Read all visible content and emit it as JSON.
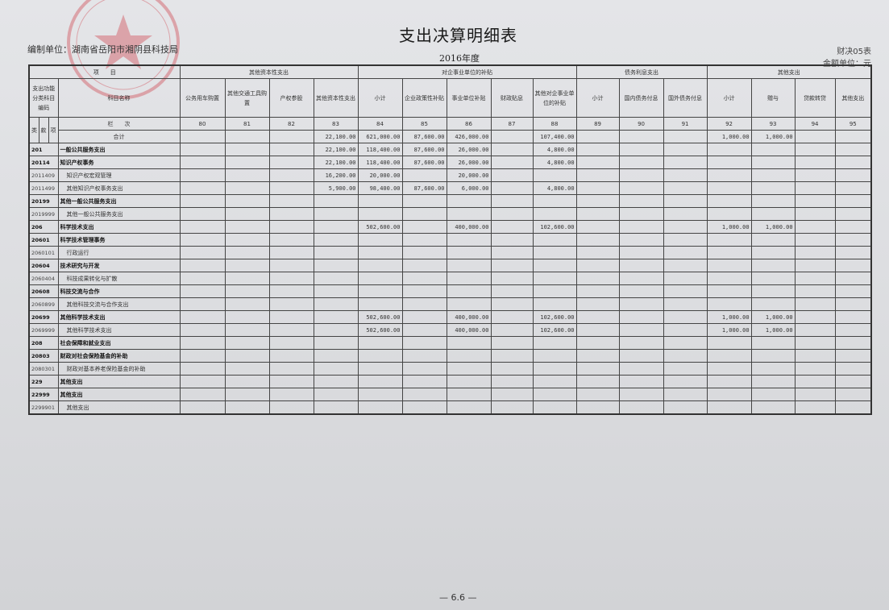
{
  "header": {
    "title": "支出决算明细表",
    "unit": "编制单位：湖南省岳阳市湘阴县科技局",
    "year": "2016年度",
    "form_no": "财决05表",
    "money_unit": "金额单位：元"
  },
  "stamp_color": "#d2555f",
  "columns": {
    "project": "项　　目",
    "func_code": "支出功能分类科目编码",
    "item_name": "科目名称",
    "lei": "类",
    "kuan": "款",
    "xiang": "项",
    "lanci": "栏　　次",
    "groups": [
      "其他资本性支出",
      "对企事业单位的补贴",
      "债务利息支出",
      "其他支出"
    ],
    "subs": [
      "公务用车购置",
      "其他交通工具购置",
      "产权参股",
      "其他资本性支出",
      "小计",
      "企业政策性补贴",
      "事业单位补贴",
      "财政贴息",
      "其他对企事业单位的补贴",
      "小计",
      "国内债务付息",
      "国外债务付息",
      "小计",
      "赠与",
      "贷款转贷",
      "其他支出"
    ],
    "numbers": [
      "80",
      "81",
      "82",
      "83",
      "84",
      "85",
      "86",
      "87",
      "88",
      "89",
      "90",
      "91",
      "92",
      "93",
      "94",
      "95"
    ]
  },
  "total": {
    "label": "合计",
    "values": [
      "",
      "",
      "",
      "22,100.00",
      "621,000.00",
      "87,600.00",
      "426,000.00",
      "",
      "107,400.00",
      "",
      "",
      "",
      "1,000.00",
      "1,000.00",
      "",
      ""
    ]
  },
  "rows": [
    {
      "code": "201",
      "name": "一般公共服务支出",
      "bold": true,
      "values": [
        "",
        "",
        "",
        "22,100.00",
        "118,400.00",
        "87,600.00",
        "26,000.00",
        "",
        "4,800.00",
        "",
        "",
        "",
        "",
        "",
        "",
        ""
      ]
    },
    {
      "code": "20114",
      "name": "知识产权事务",
      "bold": true,
      "values": [
        "",
        "",
        "",
        "22,100.00",
        "118,400.00",
        "87,600.00",
        "26,000.00",
        "",
        "4,800.00",
        "",
        "",
        "",
        "",
        "",
        "",
        ""
      ]
    },
    {
      "code": "2011409",
      "name": "知识产权宏观管理",
      "bold": false,
      "values": [
        "",
        "",
        "",
        "16,200.00",
        "20,000.00",
        "",
        "20,000.00",
        "",
        "",
        "",
        "",
        "",
        "",
        "",
        "",
        ""
      ]
    },
    {
      "code": "2011499",
      "name": "其他知识产权事务支出",
      "bold": false,
      "values": [
        "",
        "",
        "",
        "5,900.00",
        "98,400.00",
        "87,600.00",
        "6,000.00",
        "",
        "4,800.00",
        "",
        "",
        "",
        "",
        "",
        "",
        ""
      ]
    },
    {
      "code": "20199",
      "name": "其他一般公共服务支出",
      "bold": true,
      "values": [
        "",
        "",
        "",
        "",
        "",
        "",
        "",
        "",
        "",
        "",
        "",
        "",
        "",
        "",
        "",
        ""
      ]
    },
    {
      "code": "2019999",
      "name": "其他一般公共服务支出",
      "bold": false,
      "values": [
        "",
        "",
        "",
        "",
        "",
        "",
        "",
        "",
        "",
        "",
        "",
        "",
        "",
        "",
        "",
        ""
      ]
    },
    {
      "code": "206",
      "name": "科学技术支出",
      "bold": true,
      "values": [
        "",
        "",
        "",
        "",
        "502,600.00",
        "",
        "400,000.00",
        "",
        "102,600.00",
        "",
        "",
        "",
        "1,000.00",
        "1,000.00",
        "",
        ""
      ]
    },
    {
      "code": "20601",
      "name": "科学技术管理事务",
      "bold": true,
      "values": [
        "",
        "",
        "",
        "",
        "",
        "",
        "",
        "",
        "",
        "",
        "",
        "",
        "",
        "",
        "",
        ""
      ]
    },
    {
      "code": "2060101",
      "name": "行政运行",
      "bold": false,
      "values": [
        "",
        "",
        "",
        "",
        "",
        "",
        "",
        "",
        "",
        "",
        "",
        "",
        "",
        "",
        "",
        ""
      ]
    },
    {
      "code": "20604",
      "name": "技术研究与开发",
      "bold": true,
      "values": [
        "",
        "",
        "",
        "",
        "",
        "",
        "",
        "",
        "",
        "",
        "",
        "",
        "",
        "",
        "",
        ""
      ]
    },
    {
      "code": "2060404",
      "name": "科技成果转化与扩散",
      "bold": false,
      "values": [
        "",
        "",
        "",
        "",
        "",
        "",
        "",
        "",
        "",
        "",
        "",
        "",
        "",
        "",
        "",
        ""
      ]
    },
    {
      "code": "20608",
      "name": "科技交流与合作",
      "bold": true,
      "values": [
        "",
        "",
        "",
        "",
        "",
        "",
        "",
        "",
        "",
        "",
        "",
        "",
        "",
        "",
        "",
        ""
      ]
    },
    {
      "code": "2060899",
      "name": "其他科技交流与合作支出",
      "bold": false,
      "values": [
        "",
        "",
        "",
        "",
        "",
        "",
        "",
        "",
        "",
        "",
        "",
        "",
        "",
        "",
        "",
        ""
      ]
    },
    {
      "code": "20699",
      "name": "其他科学技术支出",
      "bold": true,
      "values": [
        "",
        "",
        "",
        "",
        "502,600.00",
        "",
        "400,000.00",
        "",
        "102,600.00",
        "",
        "",
        "",
        "1,000.00",
        "1,000.00",
        "",
        ""
      ]
    },
    {
      "code": "2069999",
      "name": "其他科学技术支出",
      "bold": false,
      "values": [
        "",
        "",
        "",
        "",
        "502,600.00",
        "",
        "400,000.00",
        "",
        "102,600.00",
        "",
        "",
        "",
        "1,000.00",
        "1,000.00",
        "",
        ""
      ]
    },
    {
      "code": "208",
      "name": "社会保障和就业支出",
      "bold": true,
      "values": [
        "",
        "",
        "",
        "",
        "",
        "",
        "",
        "",
        "",
        "",
        "",
        "",
        "",
        "",
        "",
        ""
      ]
    },
    {
      "code": "20803",
      "name": "财政对社会保险基金的补助",
      "bold": true,
      "values": [
        "",
        "",
        "",
        "",
        "",
        "",
        "",
        "",
        "",
        "",
        "",
        "",
        "",
        "",
        "",
        ""
      ]
    },
    {
      "code": "2080301",
      "name": "财政对基本养老保险基金的补助",
      "bold": false,
      "values": [
        "",
        "",
        "",
        "",
        "",
        "",
        "",
        "",
        "",
        "",
        "",
        "",
        "",
        "",
        "",
        ""
      ]
    },
    {
      "code": "229",
      "name": "其他支出",
      "bold": true,
      "values": [
        "",
        "",
        "",
        "",
        "",
        "",
        "",
        "",
        "",
        "",
        "",
        "",
        "",
        "",
        "",
        ""
      ]
    },
    {
      "code": "22999",
      "name": "其他支出",
      "bold": true,
      "values": [
        "",
        "",
        "",
        "",
        "",
        "",
        "",
        "",
        "",
        "",
        "",
        "",
        "",
        "",
        "",
        ""
      ]
    },
    {
      "code": "2299901",
      "name": "其他支出",
      "bold": false,
      "values": [
        "",
        "",
        "",
        "",
        "",
        "",
        "",
        "",
        "",
        "",
        "",
        "",
        "",
        "",
        "",
        ""
      ]
    }
  ],
  "page_number": "— 6.6 —"
}
